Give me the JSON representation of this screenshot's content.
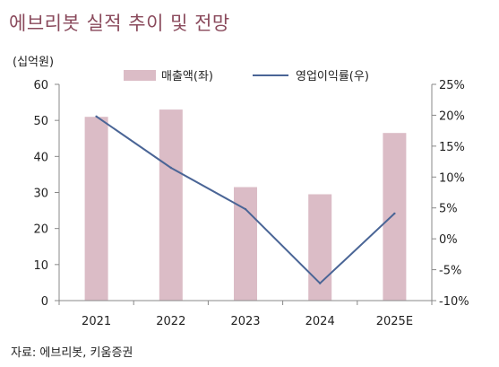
{
  "header": {
    "title": "에브리봇 실적 추이 및 전망",
    "unit": "(십억원)"
  },
  "footer": {
    "source": "자료: 에브리봇, 키움증권"
  },
  "colors": {
    "bar": "#dbbcc6",
    "line": "#4a6596",
    "title": "#8a4a5c",
    "axis": "#888888"
  },
  "chart_data": {
    "type": "bar",
    "title": "에브리봇 실적 추이 및 전망",
    "categories": [
      "2021",
      "2022",
      "2023",
      "2024",
      "2025E"
    ],
    "series": [
      {
        "name": "매출액(좌)",
        "type": "bar",
        "axis": "left",
        "values": [
          51.0,
          53.0,
          31.5,
          29.5,
          46.5
        ]
      },
      {
        "name": "영업이익률(우)",
        "type": "line",
        "axis": "right",
        "values": [
          19.8,
          11.5,
          4.8,
          -7.2,
          4.1
        ]
      }
    ],
    "ylabel": "(십억원)",
    "ylim": [
      0,
      60
    ],
    "yticks": [
      "0",
      "10",
      "20",
      "30",
      "40",
      "50",
      "60"
    ],
    "y2lim": [
      -10,
      25
    ],
    "y2ticks": [
      "-10%",
      "-5%",
      "0%",
      "5%",
      "10%",
      "15%",
      "20%",
      "25%"
    ],
    "legend": "top",
    "grid": false
  }
}
